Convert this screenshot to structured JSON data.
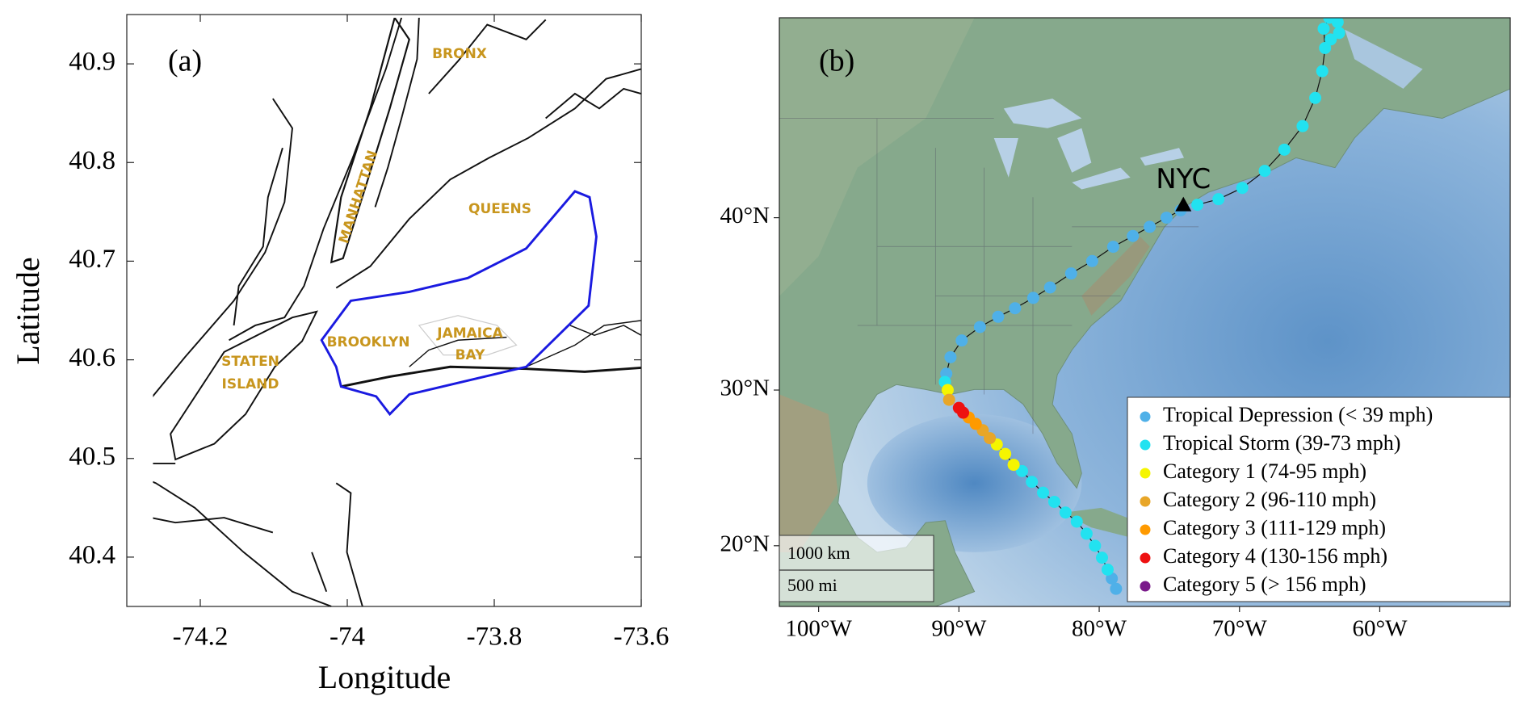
{
  "chart_data": [
    {
      "type": "map",
      "panel": "(a)",
      "xlabel": "Longitude",
      "ylabel": "Latitude",
      "xlim": [
        -74.3,
        -73.6
      ],
      "ylim": [
        40.35,
        40.95
      ],
      "xticks": [
        -74.2,
        -74,
        -73.8,
        -73.6
      ],
      "yticks": [
        40.4,
        40.5,
        40.6,
        40.7,
        40.8,
        40.9
      ],
      "place_labels": [
        "BRONX",
        "MANHATTAN",
        "QUEENS",
        "BROOKLYN",
        "JAMAICA",
        "BAY",
        "STATEN",
        "ISLAND"
      ],
      "label_color": "#c8961e",
      "boundary_color": "#1a1ae0"
    },
    {
      "type": "map",
      "panel": "(b)",
      "projection": "mercator",
      "xlim": [
        -102.8,
        -50.7
      ],
      "ylim": [
        15.9,
        50.0
      ],
      "xticks": [
        {
          "value": -100,
          "label": "100°W"
        },
        {
          "value": -90,
          "label": "90°W"
        },
        {
          "value": -80,
          "label": "80°W"
        },
        {
          "value": -70,
          "label": "70°W"
        },
        {
          "value": -60,
          "label": "60°W"
        }
      ],
      "yticks": [
        {
          "value": 20,
          "label": "20°N"
        },
        {
          "value": 30,
          "label": "30°N"
        },
        {
          "value": 40,
          "label": "40°N"
        }
      ],
      "city": {
        "name": "NYC",
        "lon": -74.0,
        "lat": 40.7
      },
      "scale_labels": [
        "1000 km",
        "500 mi"
      ],
      "legend": "lower right",
      "series": [
        {
          "name": "Tropical Depression (< 39 mph)",
          "color": "#4fb0e8",
          "x": [
            -78.8,
            -79.1,
            null,
            -90.9,
            -90.6,
            -89.8,
            -88.5,
            -87.2,
            -86.0,
            -84.7,
            -83.5,
            -82.0,
            -80.5,
            -79.0,
            -77.6,
            -76.4,
            -75.2,
            -74.2
          ],
          "y": [
            17.1,
            17.8,
            null,
            31.0,
            32.0,
            33.0,
            33.8,
            34.4,
            34.9,
            35.5,
            36.1,
            36.9,
            37.6,
            38.4,
            39.0,
            39.5,
            40.0,
            40.4
          ]
        },
        {
          "name": "Tropical Storm (39-73 mph)",
          "color": "#22e2f0",
          "x": [
            -79.4,
            -79.8,
            -80.3,
            -80.9,
            -81.6,
            -82.4,
            -83.2,
            -84.0,
            -84.8,
            -85.5,
            null,
            -91.0,
            null,
            -73.0,
            -71.5,
            -69.8,
            -68.2,
            -66.8,
            -65.5,
            -64.6,
            -64.1,
            -63.9,
            -64.0,
            -63.6,
            -63.0,
            -62.9,
            -63.5
          ],
          "y": [
            18.4,
            19.2,
            20.0,
            20.8,
            21.6,
            22.2,
            22.9,
            23.5,
            24.2,
            24.9,
            null,
            30.5,
            null,
            40.7,
            41.0,
            41.6,
            42.5,
            43.6,
            44.8,
            46.2,
            47.5,
            48.6,
            49.5,
            50.0,
            49.8,
            49.3,
            49.0
          ]
        },
        {
          "name": "Category 1 (74-95 mph)",
          "color": "#f5f500",
          "x": [
            -86.1,
            -86.7,
            -87.3,
            null,
            -90.8
          ],
          "y": [
            25.3,
            26.0,
            26.6,
            null,
            30.0
          ]
        },
        {
          "name": "Category 2 (96-110 mph)",
          "color": "#e8a628",
          "x": [
            -87.8,
            -88.3,
            null,
            -90.7
          ],
          "y": [
            27.0,
            27.5,
            null,
            29.4
          ]
        },
        {
          "name": "Category 3 (111-129 mph)",
          "color": "#ff9a00",
          "x": [
            -88.8,
            -89.3
          ],
          "y": [
            27.9,
            28.3
          ]
        },
        {
          "name": "Category 4 (130-156 mph)",
          "color": "#ee1111",
          "x": [
            -89.7,
            -90.0
          ],
          "y": [
            28.6,
            28.9
          ]
        },
        {
          "name": "Category 5 (> 156 mph)",
          "color": "#7a1a8a",
          "x": [],
          "y": []
        }
      ]
    }
  ]
}
